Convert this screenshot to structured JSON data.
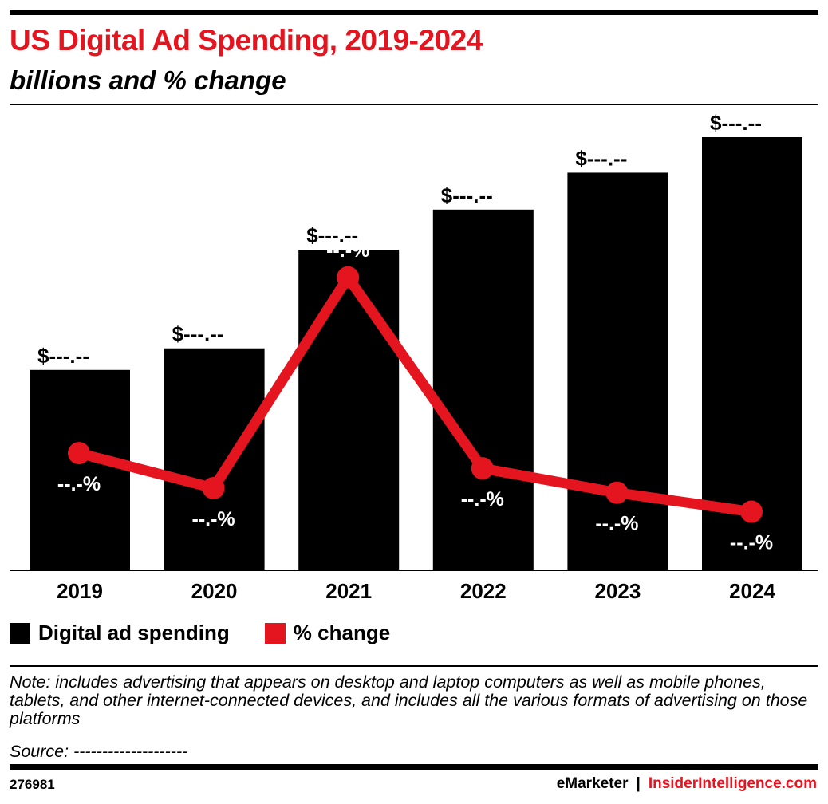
{
  "header": {
    "title": "US Digital Ad Spending, 2019-2024",
    "subtitle": "billions and % change"
  },
  "chart_data": {
    "type": "bar",
    "categories": [
      "2019",
      "2020",
      "2021",
      "2022",
      "2023",
      "2024"
    ],
    "series": [
      {
        "name": "Digital ad spending",
        "kind": "bar",
        "values": [
          130,
          144,
          208,
          234,
          258,
          281
        ],
        "labels": [
          "$---.--",
          "$---.--",
          "$---.--",
          "$---.--",
          "$---.--",
          "$---.--"
        ],
        "color": "#000000"
      },
      {
        "name": "% change",
        "kind": "line",
        "values": [
          15.4,
          10.8,
          38.5,
          13.4,
          10.2,
          7.7
        ],
        "labels": [
          "--.-%",
          "--.-%",
          "--.-%",
          "--.-%",
          "--.-%",
          "--.-%"
        ],
        "color": "#e4151f"
      }
    ],
    "ylim_bars": [
      0,
      300
    ],
    "ylim_line": [
      0,
      60
    ],
    "grid": false,
    "legend_placement": "bottom-left"
  },
  "legend": {
    "items": [
      {
        "label": "Digital ad spending",
        "color": "#000000"
      },
      {
        "label": "% change",
        "color": "#e4151f"
      }
    ]
  },
  "footer": {
    "note": "Note: includes advertising that appears on desktop and laptop computers as well as mobile phones, tablets, and other internet-connected devices, and includes all the various formats of advertising on those platforms",
    "source": "Source: --------------------",
    "chart_id": "276981",
    "brand_left": "eMarketer",
    "brand_sep": "|",
    "brand_right": "InsiderIntelligence.com"
  },
  "colors": {
    "accent": "#e4151f",
    "bar": "#000000"
  }
}
